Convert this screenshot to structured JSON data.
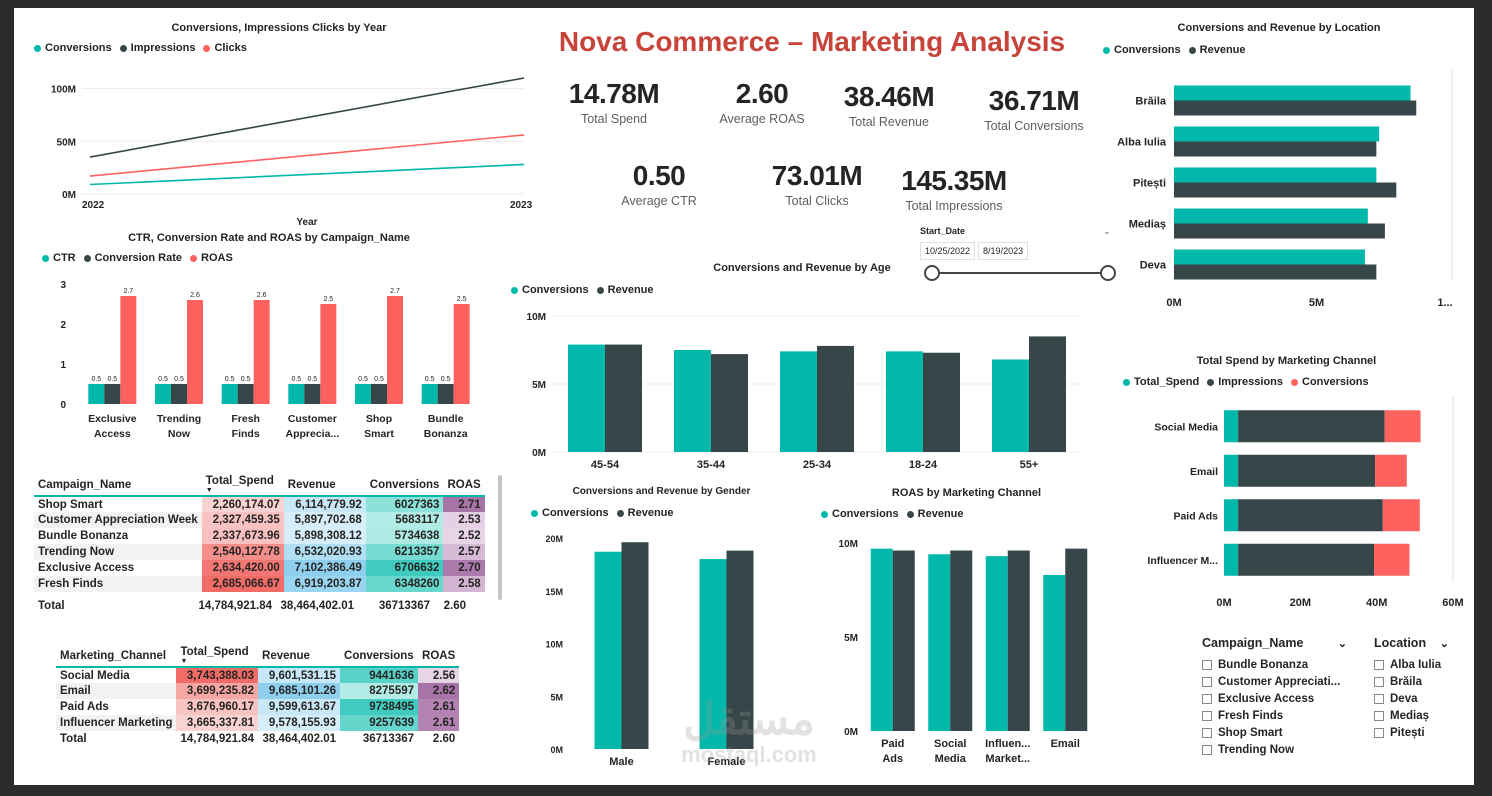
{
  "header": {
    "title": "Nova Commerce – Marketing Analysis"
  },
  "kpis": [
    {
      "value": "14.78M",
      "label": "Total Spend"
    },
    {
      "value": "2.60",
      "label": "Average ROAS"
    },
    {
      "value": "38.46M",
      "label": "Total Revenue"
    },
    {
      "value": "36.71M",
      "label": "Total Conversions"
    },
    {
      "value": "0.50",
      "label": "Average CTR"
    },
    {
      "value": "73.01M",
      "label": "Total Clicks"
    },
    {
      "value": "145.35M",
      "label": "Total Impressions"
    }
  ],
  "date_slicer": {
    "label": "Start_Date",
    "start": "10/25/2022",
    "end": "8/19/2023"
  },
  "colors": {
    "teal": "#01b8aa",
    "dark": "#374649",
    "red": "#fd625e",
    "title": "#c7443a"
  },
  "chart_data": [
    {
      "id": "year",
      "type": "line",
      "title": "Conversions,  Impressions Clicks by Year",
      "xlabel": "Year",
      "ylabel": "",
      "x": [
        "2022",
        "2023"
      ],
      "ylim": [
        0,
        110
      ],
      "yticks": [
        "0M",
        "50M",
        "100M"
      ],
      "series": [
        {
          "name": "Conversions",
          "values": [
            9,
            28
          ]
        },
        {
          "name": "Impressions",
          "values": [
            35,
            110
          ]
        },
        {
          "name": "Clicks",
          "values": [
            17,
            56
          ]
        }
      ]
    },
    {
      "id": "campaign",
      "type": "bar",
      "title": "CTR, Conversion Rate and ROAS by Campaign_Name",
      "categories": [
        "Exclusive Access",
        "Trending Now",
        "Fresh Finds",
        "Customer Apprecia...",
        "Shop Smart",
        "Bundle Bonanza"
      ],
      "ylim": [
        0,
        3
      ],
      "yticks": [
        "0",
        "1",
        "2",
        "3"
      ],
      "series": [
        {
          "name": "CTR",
          "values": [
            0.5,
            0.5,
            0.5,
            0.5,
            0.5,
            0.5
          ]
        },
        {
          "name": "Conversion Rate",
          "values": [
            0.5,
            0.5,
            0.5,
            0.5,
            0.5,
            0.5
          ]
        },
        {
          "name": "ROAS",
          "values": [
            2.7,
            2.6,
            2.6,
            2.5,
            2.7,
            2.5
          ]
        }
      ]
    },
    {
      "id": "age",
      "type": "bar",
      "title": "Conversions and Revenue by Age",
      "categories": [
        "45-54",
        "35-44",
        "25-34",
        "18-24",
        "55+"
      ],
      "ylim": [
        0,
        10
      ],
      "yticks": [
        "0M",
        "5M",
        "10M"
      ],
      "series": [
        {
          "name": "Conversions",
          "values": [
            7.9,
            7.5,
            7.4,
            7.4,
            6.8
          ]
        },
        {
          "name": "Revenue",
          "values": [
            7.9,
            7.2,
            7.8,
            7.3,
            8.5
          ]
        }
      ]
    },
    {
      "id": "gender",
      "type": "bar",
      "title": "Conversions and  Revenue by Gender",
      "categories": [
        "Male",
        "Female"
      ],
      "ylim": [
        0,
        20
      ],
      "yticks": [
        "0M",
        "5M",
        "10M",
        "15M",
        "20M"
      ],
      "series": [
        {
          "name": "Conversions",
          "values": [
            18.7,
            18.0
          ]
        },
        {
          "name": "Revenue",
          "values": [
            19.6,
            18.8
          ]
        }
      ]
    },
    {
      "id": "roas_channel",
      "type": "bar",
      "title": "ROAS by Marketing Channel",
      "categories": [
        "Paid Ads",
        "Social Media",
        "Influen... Market...",
        "Email"
      ],
      "ylim": [
        0,
        10
      ],
      "yticks": [
        "0M",
        "5M",
        "10M"
      ],
      "series": [
        {
          "name": "Conversions",
          "values": [
            9.7,
            9.4,
            9.3,
            8.3
          ]
        },
        {
          "name": "Revenue",
          "values": [
            9.6,
            9.6,
            9.6,
            9.7
          ]
        }
      ]
    },
    {
      "id": "location",
      "type": "bar",
      "title": "Conversions and  Revenue by Location",
      "categories": [
        "Brăila",
        "Alba Iulia",
        "Pitești",
        "Mediaș",
        "Deva"
      ],
      "xlim": [
        0,
        10
      ],
      "xticks": [
        "0M",
        "5M",
        "1..."
      ],
      "series": [
        {
          "name": "Conversions",
          "values": [
            8.3,
            7.2,
            7.1,
            6.8,
            6.7
          ]
        },
        {
          "name": "Revenue",
          "values": [
            8.5,
            7.1,
            7.8,
            7.4,
            7.1
          ]
        }
      ]
    },
    {
      "id": "spend_channel",
      "type": "bar",
      "title": "Total Spend by Marketing Channel",
      "categories": [
        "Social Media",
        "Email",
        "Paid Ads",
        "Influencer M..."
      ],
      "xlim": [
        0,
        60
      ],
      "xticks": [
        "0M",
        "20M",
        "40M",
        "60M"
      ],
      "series": [
        {
          "name": "Total_Spend",
          "values": [
            3.7,
            3.7,
            3.7,
            3.7
          ]
        },
        {
          "name": "Impressions",
          "values": [
            38.4,
            35.9,
            37.9,
            35.6
          ]
        },
        {
          "name": "Conversions",
          "values": [
            9.4,
            8.3,
            9.7,
            9.3
          ]
        }
      ]
    }
  ],
  "campaign_table": {
    "headers": [
      "Campaign_Name",
      "Total_Spend",
      "Revenue",
      "Conversions",
      "ROAS"
    ],
    "rows": [
      [
        "Shop Smart",
        "2,260,174.07",
        "6,114,779.92",
        "6027363",
        "2.71"
      ],
      [
        "Customer Appreciation Week",
        "2,327,459.35",
        "5,897,702.68",
        "5683117",
        "2.53"
      ],
      [
        "Bundle Bonanza",
        "2,337,673.96",
        "5,898,308.12",
        "5734638",
        "2.52"
      ],
      [
        "Trending Now",
        "2,540,127.78",
        "6,532,020.93",
        "6213357",
        "2.57"
      ],
      [
        "Exclusive Access",
        "2,634,420.00",
        "7,102,386.49",
        "6706632",
        "2.70"
      ],
      [
        "Fresh Finds",
        "2,685,066.67",
        "6,919,203.87",
        "6348260",
        "2.58"
      ]
    ],
    "total": [
      "Total",
      "14,784,921.84",
      "38,464,402.01",
      "36713367",
      "2.60"
    ]
  },
  "channel_table": {
    "headers": [
      "Marketing_Channel",
      "Total_Spend",
      "Revenue",
      "Conversions",
      "ROAS"
    ],
    "rows": [
      [
        "Social Media",
        "3,743,388.03",
        "9,601,531.15",
        "9441636",
        "2.56"
      ],
      [
        "Email",
        "3,699,235.82",
        "9,685,101.26",
        "8275597",
        "2.62"
      ],
      [
        "Paid Ads",
        "3,676,960.17",
        "9,599,613.67",
        "9738495",
        "2.61"
      ],
      [
        "Influencer Marketing",
        "3,665,337.81",
        "9,578,155.93",
        "9257639",
        "2.61"
      ]
    ],
    "total": [
      "Total",
      "14,784,921.84",
      "38,464,402.01",
      "36713367",
      "2.60"
    ]
  },
  "slicers": {
    "campaign": {
      "title": "Campaign_Name",
      "items": [
        "Bundle Bonanza",
        "Customer Appreciati...",
        "Exclusive Access",
        "Fresh Finds",
        "Shop Smart",
        "Trending Now"
      ]
    },
    "location": {
      "title": "Location",
      "items": [
        "Alba Iulia",
        "Brăila",
        "Deva",
        "Mediaș",
        "Pitești"
      ]
    }
  },
  "watermark": {
    "text": "مستقل",
    "domain": "mostaql.com"
  }
}
